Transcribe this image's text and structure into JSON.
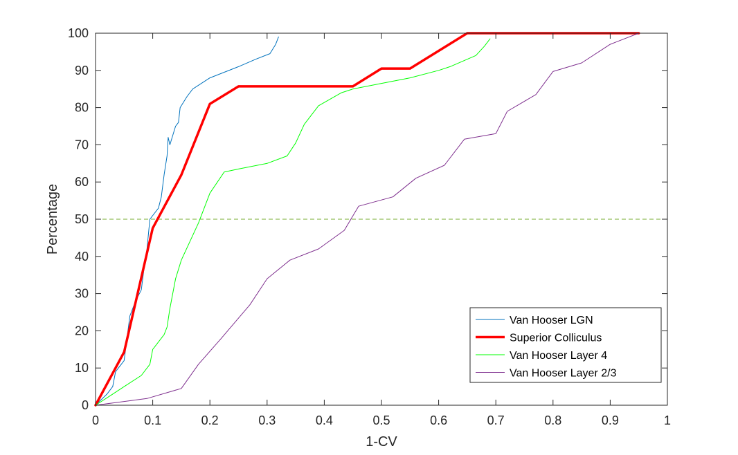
{
  "chart_data": {
    "type": "line",
    "xlabel": "1-CV",
    "ylabel": "Percentage",
    "xlim": [
      0,
      1
    ],
    "ylim": [
      0,
      100
    ],
    "xticks": [
      0,
      0.1,
      0.2,
      0.3,
      0.4,
      0.5,
      0.6,
      0.7,
      0.8,
      0.9,
      1
    ],
    "xtick_labels": [
      "0",
      "0.1",
      "0.2",
      "0.3",
      "0.4",
      "0.5",
      "0.6",
      "0.7",
      "0.8",
      "0.9",
      "1"
    ],
    "yticks": [
      0,
      10,
      20,
      30,
      40,
      50,
      60,
      70,
      80,
      90,
      100
    ],
    "ytick_labels": [
      "0",
      "10",
      "20",
      "30",
      "40",
      "50",
      "60",
      "70",
      "80",
      "90",
      "100"
    ],
    "grid": false,
    "legend_position": "bottom-right",
    "reference_line": {
      "y": 50,
      "style": "dashed",
      "color": "#77AC30"
    },
    "series": [
      {
        "name": "Van Hooser LGN",
        "color": "#0072BD",
        "width": 1,
        "points": [
          [
            0,
            0
          ],
          [
            0.02,
            3
          ],
          [
            0.03,
            5
          ],
          [
            0.035,
            9
          ],
          [
            0.05,
            12
          ],
          [
            0.055,
            18
          ],
          [
            0.06,
            24
          ],
          [
            0.07,
            28
          ],
          [
            0.08,
            31
          ],
          [
            0.085,
            37
          ],
          [
            0.09,
            42
          ],
          [
            0.095,
            50
          ],
          [
            0.11,
            53
          ],
          [
            0.115,
            56
          ],
          [
            0.12,
            62
          ],
          [
            0.125,
            67
          ],
          [
            0.127,
            72
          ],
          [
            0.13,
            70
          ],
          [
            0.14,
            75
          ],
          [
            0.145,
            76
          ],
          [
            0.148,
            80
          ],
          [
            0.16,
            83
          ],
          [
            0.17,
            85
          ],
          [
            0.2,
            88
          ],
          [
            0.25,
            91
          ],
          [
            0.28,
            93
          ],
          [
            0.305,
            94.5
          ],
          [
            0.315,
            97
          ],
          [
            0.32,
            99
          ]
        ]
      },
      {
        "name": "Superior Colliculus",
        "color": "#FF0000",
        "width": 3.5,
        "points": [
          [
            0,
            0
          ],
          [
            0.05,
            14.3
          ],
          [
            0.1,
            47.6
          ],
          [
            0.15,
            61.9
          ],
          [
            0.2,
            81
          ],
          [
            0.25,
            85.7
          ],
          [
            0.45,
            85.7
          ],
          [
            0.5,
            90.5
          ],
          [
            0.55,
            90.5
          ],
          [
            0.65,
            100
          ],
          [
            0.95,
            100
          ]
        ]
      },
      {
        "name": "Van Hooser Layer 4",
        "color": "#00FF00",
        "width": 1,
        "points": [
          [
            0,
            0
          ],
          [
            0.03,
            3
          ],
          [
            0.05,
            5
          ],
          [
            0.08,
            8
          ],
          [
            0.095,
            11
          ],
          [
            0.1,
            15
          ],
          [
            0.12,
            19
          ],
          [
            0.125,
            21
          ],
          [
            0.13,
            26
          ],
          [
            0.14,
            34
          ],
          [
            0.15,
            39
          ],
          [
            0.165,
            44
          ],
          [
            0.18,
            49
          ],
          [
            0.195,
            55
          ],
          [
            0.2,
            57
          ],
          [
            0.225,
            62.7
          ],
          [
            0.25,
            63.5
          ],
          [
            0.3,
            65
          ],
          [
            0.335,
            67
          ],
          [
            0.35,
            70.5
          ],
          [
            0.365,
            75.5
          ],
          [
            0.39,
            80.5
          ],
          [
            0.43,
            84
          ],
          [
            0.45,
            85
          ],
          [
            0.5,
            86.5
          ],
          [
            0.55,
            88
          ],
          [
            0.6,
            90
          ],
          [
            0.62,
            91
          ],
          [
            0.665,
            94
          ],
          [
            0.68,
            96.5
          ],
          [
            0.69,
            98.5
          ]
        ]
      },
      {
        "name": "Van Hooser Layer 2/3",
        "color": "#7E2F8E",
        "width": 1,
        "points": [
          [
            0,
            0
          ],
          [
            0.05,
            1
          ],
          [
            0.09,
            1.8
          ],
          [
            0.15,
            4.5
          ],
          [
            0.18,
            11
          ],
          [
            0.22,
            18
          ],
          [
            0.27,
            27
          ],
          [
            0.3,
            34
          ],
          [
            0.34,
            39
          ],
          [
            0.39,
            42
          ],
          [
            0.435,
            47
          ],
          [
            0.46,
            53.5
          ],
          [
            0.52,
            56
          ],
          [
            0.56,
            61
          ],
          [
            0.61,
            64.5
          ],
          [
            0.645,
            71.5
          ],
          [
            0.7,
            73
          ],
          [
            0.72,
            79
          ],
          [
            0.77,
            83.5
          ],
          [
            0.8,
            89.7
          ],
          [
            0.85,
            92
          ],
          [
            0.9,
            97
          ],
          [
            0.95,
            100
          ]
        ]
      }
    ]
  }
}
